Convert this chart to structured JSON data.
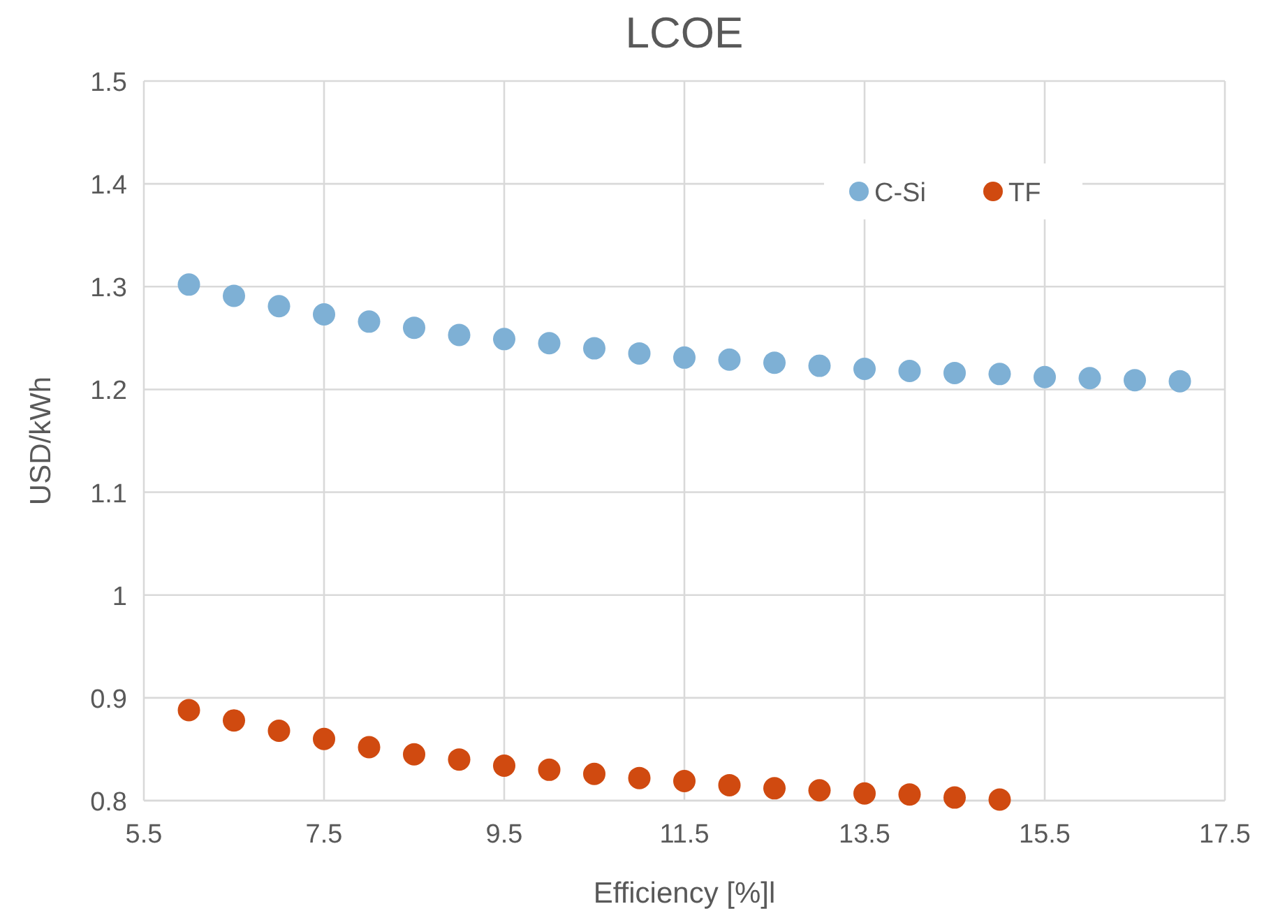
{
  "chart_data": {
    "type": "scatter",
    "title": "LCOE",
    "xlabel": "Efficiency [%]l",
    "ylabel": "USD/kWh",
    "xlim": [
      5.5,
      17.5
    ],
    "xticks": [
      5.5,
      7.5,
      9.5,
      11.5,
      13.5,
      15.5,
      17.5
    ],
    "ylim": [
      0.8,
      1.5
    ],
    "yticks": [
      0.8,
      0.9,
      1,
      1.1,
      1.2,
      1.3,
      1.4,
      1.5
    ],
    "grid": true,
    "legend": "top right",
    "marker": "circle",
    "series": [
      {
        "name": "C-Si",
        "color": "#7eb0d5",
        "x": [
          6,
          6.5,
          7,
          7.5,
          8,
          8.5,
          9,
          9.5,
          10,
          10.5,
          11,
          11.5,
          12,
          12.5,
          13,
          13.5,
          14,
          14.5,
          15,
          15.5,
          16,
          16.5,
          17
        ],
        "values": [
          1.302,
          1.291,
          1.281,
          1.273,
          1.266,
          1.26,
          1.253,
          1.249,
          1.245,
          1.24,
          1.235,
          1.231,
          1.229,
          1.226,
          1.223,
          1.22,
          1.218,
          1.216,
          1.215,
          1.212,
          1.211,
          1.209,
          1.208
        ]
      },
      {
        "name": "TF",
        "color": "#d04a10",
        "x": [
          6,
          6.5,
          7,
          7.5,
          8,
          8.5,
          9,
          9.5,
          10,
          10.5,
          11,
          11.5,
          12,
          12.5,
          13,
          13.5,
          14,
          14.5,
          15
        ],
        "values": [
          0.888,
          0.878,
          0.868,
          0.86,
          0.852,
          0.845,
          0.84,
          0.834,
          0.83,
          0.826,
          0.822,
          0.819,
          0.815,
          0.812,
          0.81,
          0.807,
          0.806,
          0.803,
          0.801
        ]
      }
    ]
  }
}
